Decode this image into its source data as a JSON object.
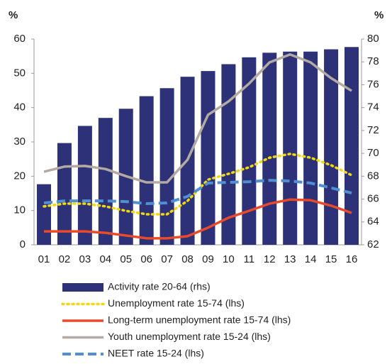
{
  "chart_data": {
    "type": "bar",
    "y_label": "%",
    "y2_label": "%",
    "categories": [
      "01",
      "02",
      "03",
      "04",
      "05",
      "06",
      "07",
      "08",
      "09",
      "10",
      "11",
      "12",
      "13",
      "14",
      "15",
      "16"
    ],
    "ylim": [
      0,
      60
    ],
    "yticks": [
      0,
      10,
      20,
      30,
      40,
      50,
      60
    ],
    "y2lim": [
      62,
      80
    ],
    "y2ticks": [
      62,
      64,
      66,
      68,
      70,
      72,
      74,
      76,
      78,
      80
    ],
    "series": [
      {
        "name": "Activity rate 20-64 (rhs)",
        "type": "bar",
        "axis": "y2",
        "color": "#2d3278",
        "values": [
          67.3,
          70.9,
          72.4,
          73.1,
          73.9,
          75.0,
          75.7,
          76.7,
          77.2,
          77.8,
          78.4,
          78.8,
          78.9,
          78.9,
          79.1,
          79.3
        ]
      },
      {
        "name": "Unemployment rate 15-74 (lhs)",
        "type": "line",
        "dash": "dotted",
        "color": "#f2d80c",
        "values": [
          11.2,
          12.0,
          12.0,
          11.2,
          9.9,
          8.9,
          8.9,
          12.8,
          19.0,
          20.7,
          22.6,
          25.4,
          26.5,
          25.4,
          23.2,
          20.3
        ]
      },
      {
        "name": "Long-term unemployment rate 15-74 (lhs)",
        "type": "line",
        "dash": "solid",
        "color": "#e84a2a",
        "values": [
          3.9,
          3.9,
          3.9,
          3.5,
          2.7,
          1.9,
          1.9,
          2.5,
          5.0,
          7.9,
          9.9,
          12.0,
          13.2,
          13.0,
          11.4,
          9.3
        ]
      },
      {
        "name": "Youth unemployment rate 15-24 (lhs)",
        "type": "line",
        "dash": "solid",
        "color": "#b5aaa2",
        "values": [
          21.3,
          22.8,
          23.0,
          22.1,
          20.0,
          18.2,
          18.2,
          24.8,
          37.9,
          41.8,
          47.0,
          53.2,
          55.5,
          53.2,
          48.6,
          44.9
        ]
      },
      {
        "name": "NEET rate 15-24 (lhs)",
        "type": "line",
        "dash": "dashed",
        "color": "#4f8fd2",
        "values": [
          12.2,
          12.8,
          12.8,
          12.8,
          12.6,
          12.0,
          12.2,
          14.1,
          18.0,
          18.2,
          18.4,
          18.8,
          18.6,
          18.0,
          16.6,
          15.1
        ]
      }
    ]
  }
}
